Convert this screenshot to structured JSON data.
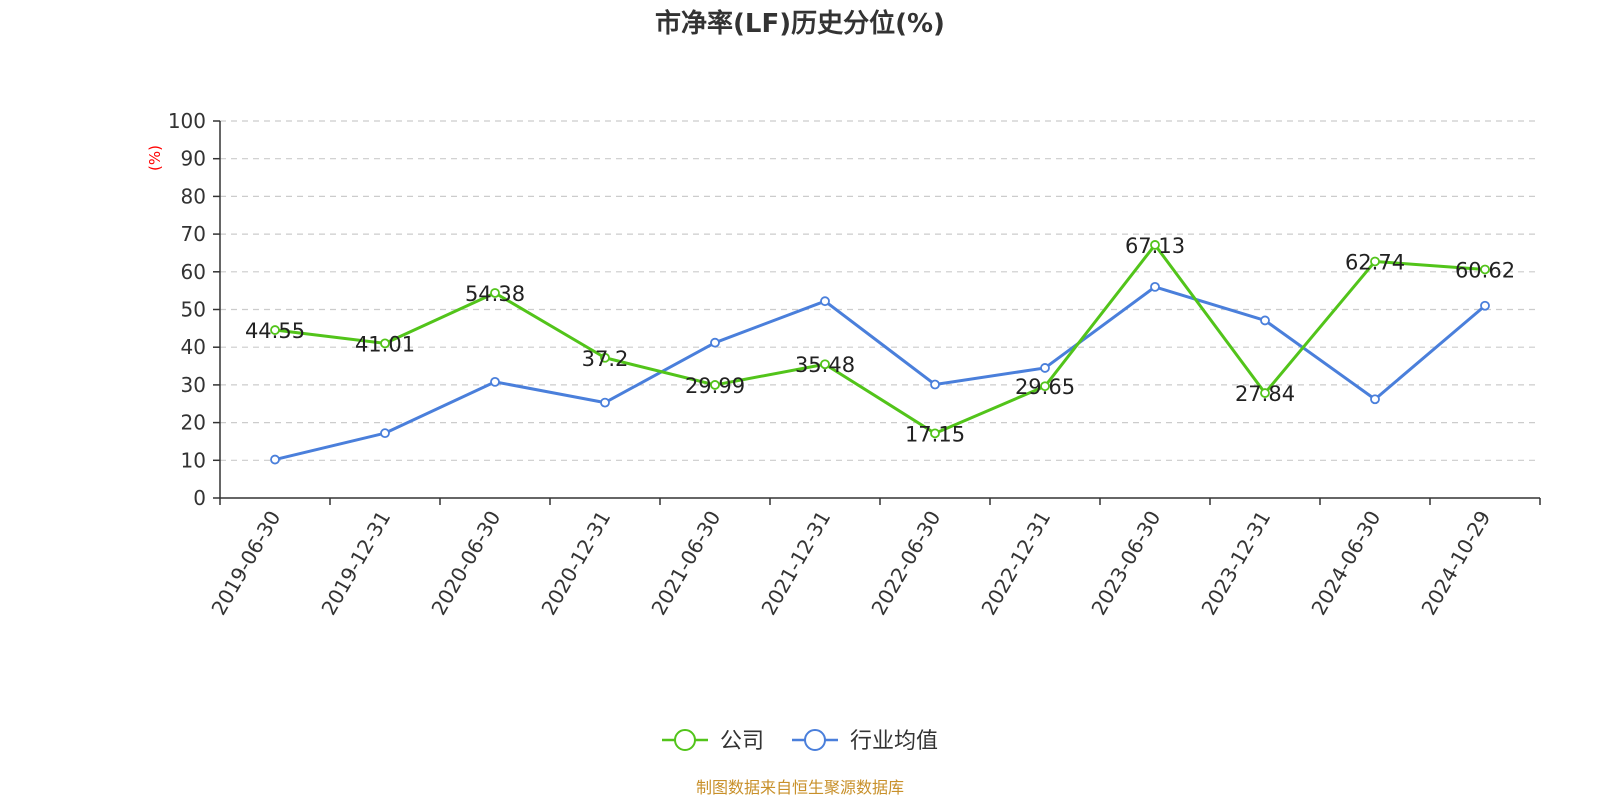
{
  "chart_data": {
    "type": "line",
    "title": "市净率(LF)历史分位(%)",
    "ylabel": "(%)",
    "xlabel": "",
    "ylim": [
      0,
      100
    ],
    "yticks": [
      0,
      10,
      20,
      30,
      40,
      50,
      60,
      70,
      80,
      90,
      100
    ],
    "grid": "horizontal-dashed",
    "legend_position": "bottom-center",
    "categories": [
      "2019-06-30",
      "2019-12-31",
      "2020-06-30",
      "2020-12-31",
      "2021-06-30",
      "2021-12-31",
      "2022-06-30",
      "2022-12-31",
      "2023-06-30",
      "2023-12-31",
      "2024-06-30",
      "2024-10-29"
    ],
    "series": [
      {
        "name": "公司",
        "color": "#52c41a",
        "values": [
          44.55,
          41.01,
          54.38,
          37.2,
          29.99,
          35.48,
          17.15,
          29.65,
          67.13,
          27.84,
          62.74,
          60.62
        ],
        "data_labels": [
          "44.55",
          "41.01",
          "54.38",
          "37.2",
          "29.99",
          "35.48",
          "17.15",
          "29.65",
          "67.13",
          "27.84",
          "62.74",
          "60.62"
        ]
      },
      {
        "name": "行业均值",
        "color": "#4a7fdb",
        "values": [
          10.2,
          17.2,
          30.8,
          25.3,
          41.2,
          52.2,
          30.1,
          34.5,
          56.0,
          47.1,
          26.2,
          51.0
        ]
      }
    ]
  },
  "ylabel_color": "#ff0000",
  "source": "制图数据来自恒生聚源数据库",
  "source_color": "#c8902a"
}
